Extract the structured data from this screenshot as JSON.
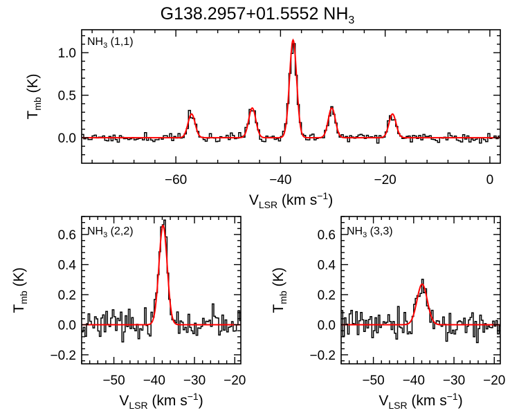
{
  "figure": {
    "title": "G138.2957+01.5552 NH",
    "title_sub": "3"
  },
  "axis_text": {
    "y_main": "T",
    "y_sub": "mb",
    "y_unit": " (K)",
    "x_main": "V",
    "x_sub": "LSR",
    "x_unit": " (km s",
    "x_sup": "−1",
    "x_close": ")"
  },
  "panel_labels": [
    {
      "main": "NH",
      "sub": "3",
      "rest": " (1,1)"
    },
    {
      "main": "NH",
      "sub": "3",
      "rest": " (2,2)"
    },
    {
      "main": "NH",
      "sub": "3",
      "rest": " (3,3)"
    }
  ],
  "colors": {
    "spectrum": "#000000",
    "fit": "#ff0000",
    "axes": "#000000"
  },
  "chart_data": [
    {
      "type": "line",
      "label": "NH3 (1,1)",
      "xlim": [
        -78,
        2
      ],
      "ylim": [
        -0.3,
        1.27
      ],
      "xticks": [
        -60,
        -40,
        -20,
        0
      ],
      "xticklabels": [
        "−60",
        "−40",
        "−20",
        "0"
      ],
      "yticks": [
        0.0,
        0.5,
        1.0
      ],
      "yticklabels": [
        "0.0",
        "0.5",
        "1.0"
      ],
      "grid": false,
      "series": [
        {
          "name": "observed",
          "kind": "step",
          "seed": 11,
          "noise": 0.03,
          "channel_width": 0.4
        },
        {
          "name": "fit",
          "kind": "gaussians",
          "components": [
            {
              "center": -57.0,
              "amplitude": 0.28,
              "fwhm": 1.6
            },
            {
              "center": -45.4,
              "amplitude": 0.35,
              "fwhm": 1.6
            },
            {
              "center": -37.6,
              "amplitude": 1.15,
              "fwhm": 1.6
            },
            {
              "center": -30.2,
              "amplitude": 0.35,
              "fwhm": 1.6
            },
            {
              "center": -18.6,
              "amplitude": 0.28,
              "fwhm": 1.6
            }
          ]
        }
      ]
    },
    {
      "type": "line",
      "label": "NH3 (2,2)",
      "xlim": [
        -58,
        -18.5
      ],
      "ylim": [
        -0.26,
        0.72
      ],
      "xticks": [
        -50,
        -40,
        -30,
        -20
      ],
      "xticklabels": [
        "−50",
        "−40",
        "−30",
        "−20"
      ],
      "yticks": [
        -0.2,
        0.0,
        0.2,
        0.4,
        0.6
      ],
      "yticklabels": [
        "−0.2",
        "0.0",
        "0.2",
        "0.4",
        "0.6"
      ],
      "grid": false,
      "series": [
        {
          "name": "observed",
          "kind": "step",
          "seed": 23,
          "noise": 0.045,
          "channel_width": 0.4
        },
        {
          "name": "fit",
          "kind": "gaussians",
          "components": [
            {
              "center": -37.8,
              "amplitude": 0.66,
              "fwhm": 2.4
            }
          ]
        }
      ]
    },
    {
      "type": "line",
      "label": "NH3 (3,3)",
      "xlim": [
        -58,
        -18.5
      ],
      "ylim": [
        -0.26,
        0.72
      ],
      "xticks": [
        -50,
        -40,
        -30,
        -20
      ],
      "xticklabels": [
        "−50",
        "−40",
        "−30",
        "−20"
      ],
      "yticks": [
        -0.2,
        0.0,
        0.2,
        0.4,
        0.6
      ],
      "yticklabels": [
        "−0.2",
        "0.0",
        "0.2",
        "0.4",
        "0.6"
      ],
      "grid": false,
      "series": [
        {
          "name": "observed",
          "kind": "step",
          "seed": 37,
          "noise": 0.05,
          "channel_width": 0.4
        },
        {
          "name": "fit",
          "kind": "gaussians",
          "components": [
            {
              "center": -37.9,
              "amplitude": 0.27,
              "fwhm": 3.0
            }
          ]
        }
      ]
    }
  ]
}
